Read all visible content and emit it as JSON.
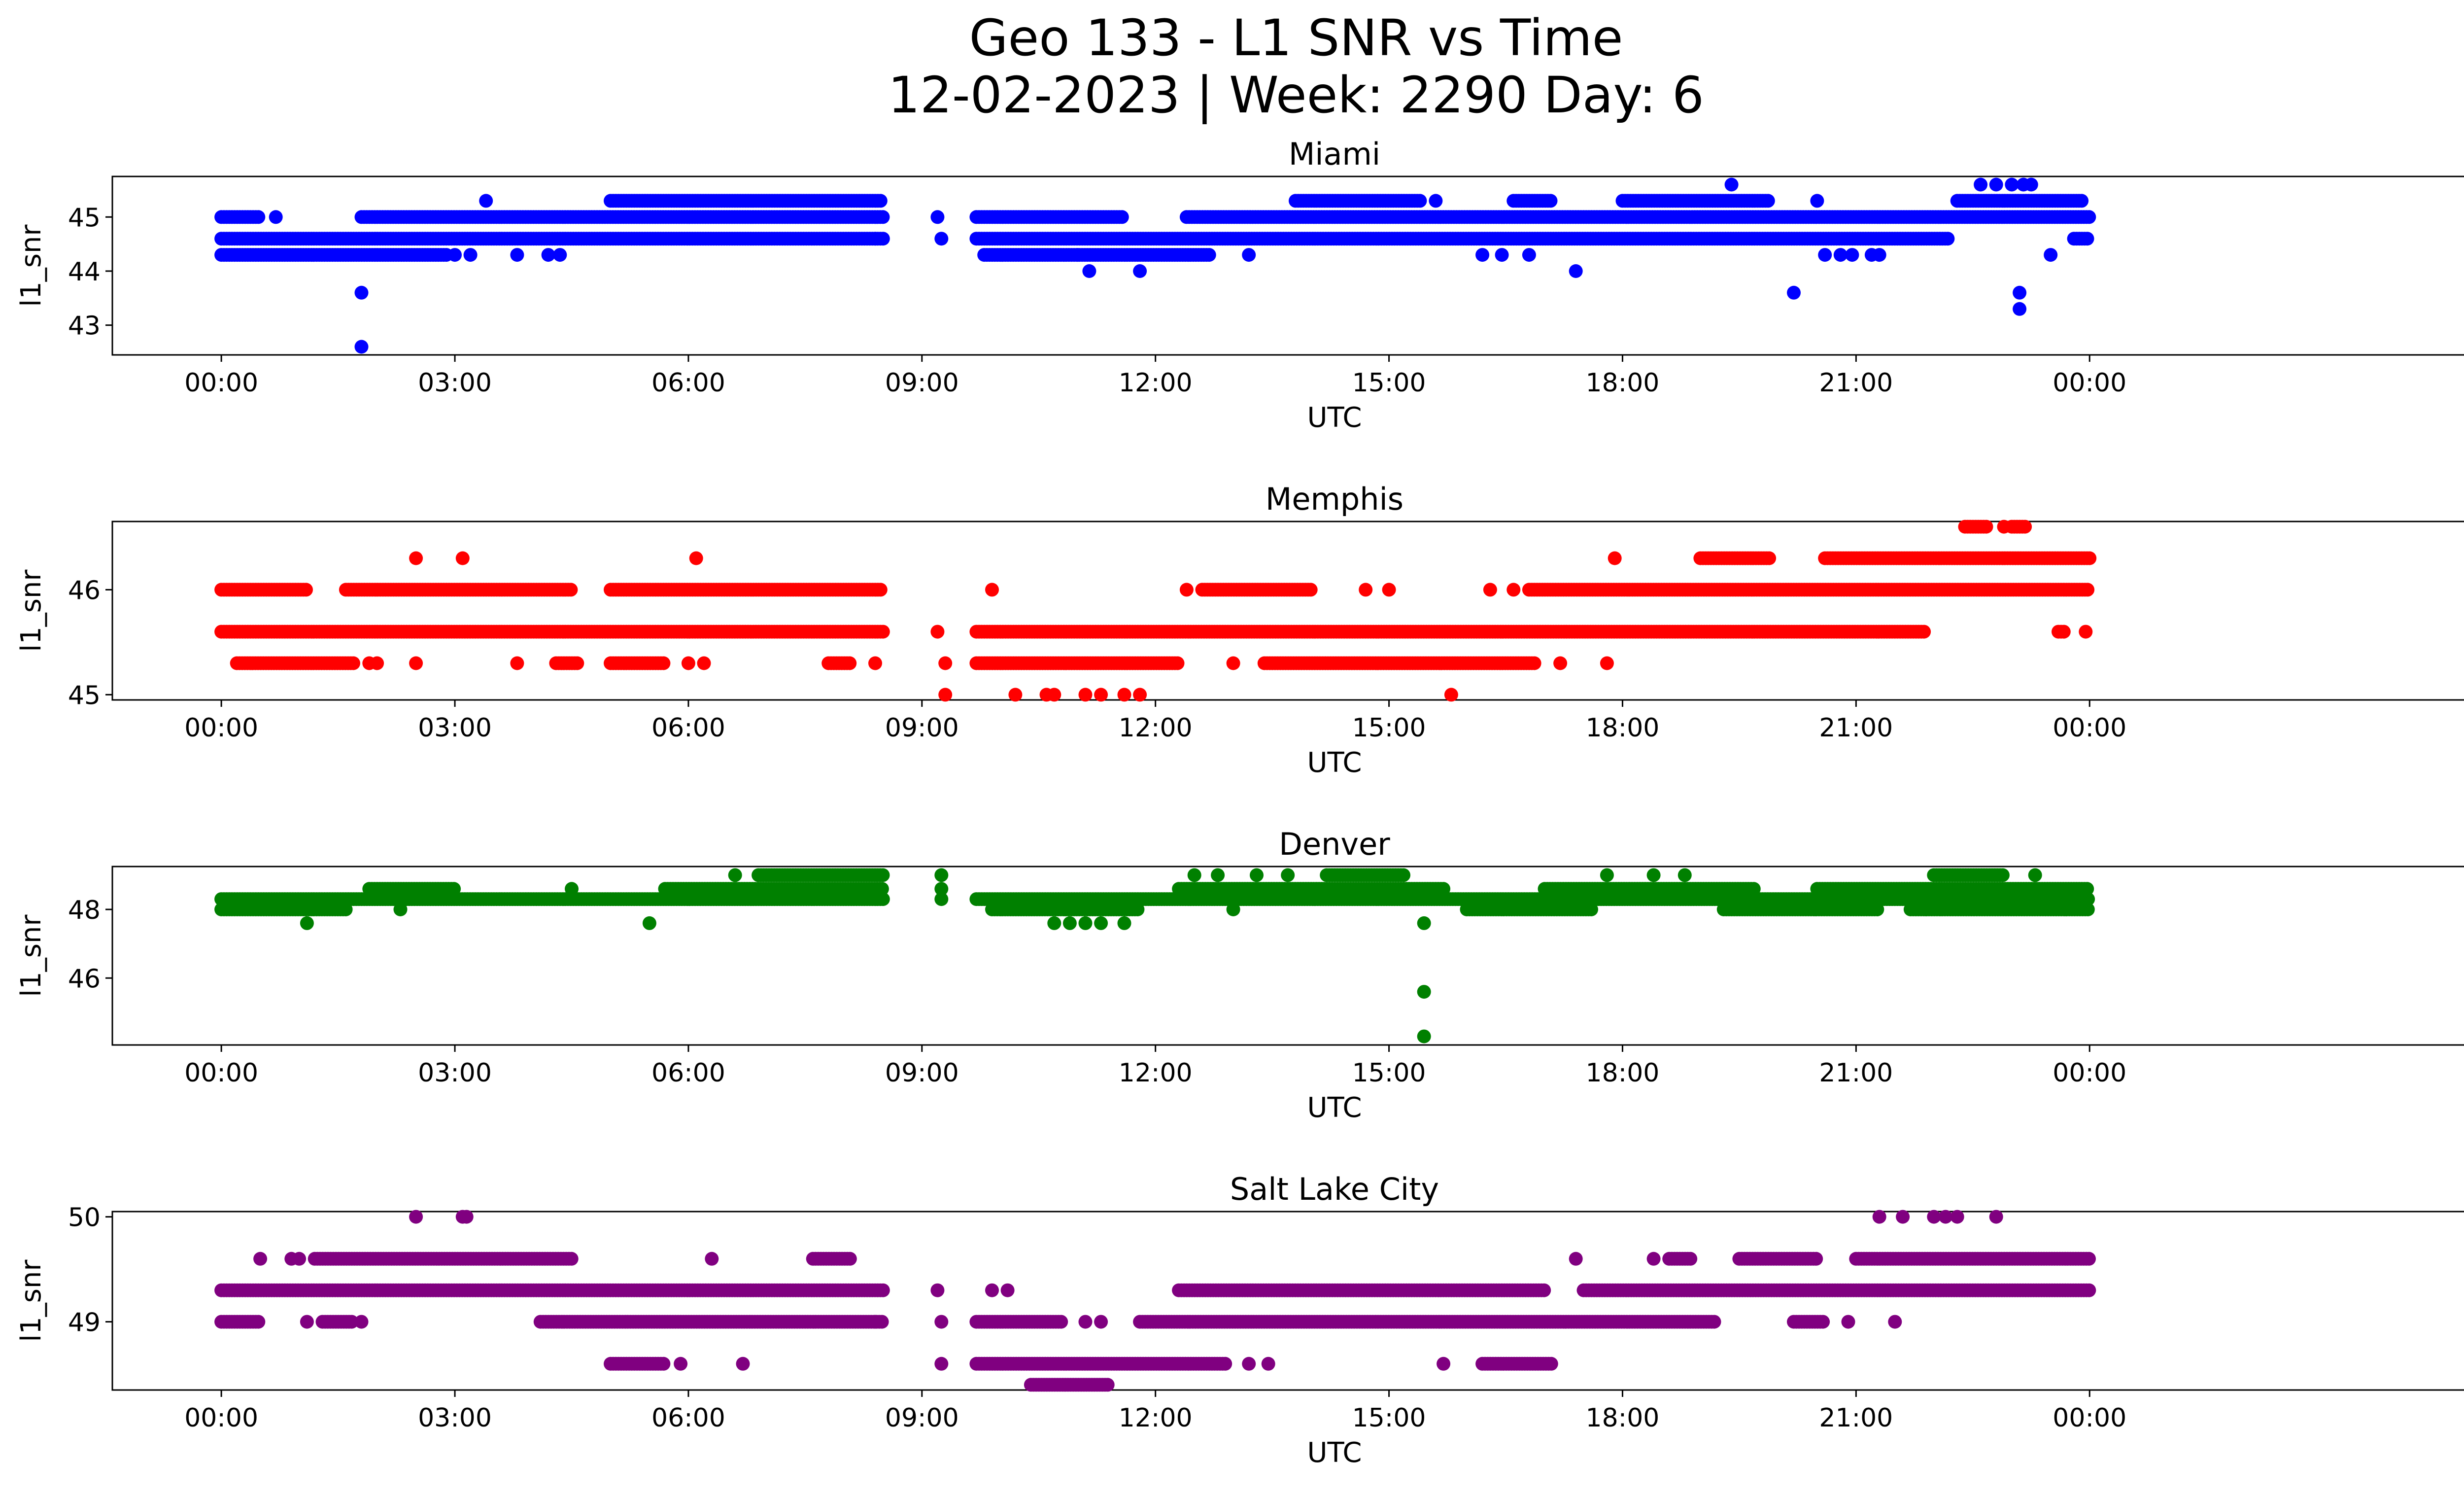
{
  "figure": {
    "title_line1": "Geo 133 - L1 SNR vs Time",
    "title_line2": "12-02-2023 | Week: 2290 Day: 6"
  },
  "chart_data": [
    {
      "type": "scatter",
      "title": "Miami",
      "xlabel": "UTC",
      "ylabel": "l1_snr",
      "color": "#0000ff",
      "xlim": [
        -1.4,
        30.0
      ],
      "ylim": [
        42.45,
        45.75
      ],
      "xticks": [
        0,
        3,
        6,
        9,
        12,
        15,
        18,
        21,
        24
      ],
      "xtick_labels": [
        "00:00",
        "03:00",
        "06:00",
        "09:00",
        "12:00",
        "15:00",
        "18:00",
        "21:00",
        "00:00"
      ],
      "yticks": [
        43,
        44,
        45
      ],
      "levels": [
        {
          "y": 44.3,
          "ranges": [
            [
              0.0,
              2.9
            ],
            [
              9.8,
              12.7
            ]
          ]
        },
        {
          "y": 44.6,
          "ranges": [
            [
              0.0,
              8.5
            ],
            [
              9.7,
              22.2
            ],
            [
              23.8,
              24.0
            ]
          ]
        },
        {
          "y": 45.0,
          "ranges": [
            [
              0.0,
              0.5
            ],
            [
              1.8,
              8.5
            ],
            [
              9.7,
              11.6
            ],
            [
              12.4,
              24.0
            ]
          ]
        },
        {
          "y": 45.3,
          "ranges": [
            [
              5.0,
              8.5
            ],
            [
              13.8,
              15.4
            ],
            [
              16.6,
              17.1
            ],
            [
              18.0,
              19.9
            ],
            [
              22.3,
              23.9
            ]
          ]
        }
      ],
      "extra_points": [
        [
          0.7,
          45.0
        ],
        [
          1.8,
          43.6
        ],
        [
          1.8,
          42.6
        ],
        [
          3.0,
          44.3
        ],
        [
          3.2,
          44.3
        ],
        [
          3.4,
          45.3
        ],
        [
          3.8,
          44.3
        ],
        [
          4.2,
          44.3
        ],
        [
          4.35,
          44.3
        ],
        [
          8.4,
          44.6
        ],
        [
          9.2,
          45.0
        ],
        [
          9.25,
          44.6
        ],
        [
          11.0,
          44.3
        ],
        [
          11.15,
          44.0
        ],
        [
          11.8,
          44.0
        ],
        [
          13.2,
          44.3
        ],
        [
          15.6,
          45.3
        ],
        [
          16.2,
          44.3
        ],
        [
          16.45,
          44.3
        ],
        [
          16.8,
          44.3
        ],
        [
          17.4,
          44.0
        ],
        [
          19.4,
          45.6
        ],
        [
          20.2,
          43.6
        ],
        [
          20.5,
          45.3
        ],
        [
          20.6,
          44.3
        ],
        [
          20.8,
          44.3
        ],
        [
          20.95,
          44.3
        ],
        [
          21.2,
          44.3
        ],
        [
          21.3,
          44.3
        ],
        [
          22.6,
          45.6
        ],
        [
          22.8,
          45.6
        ],
        [
          23.0,
          45.6
        ],
        [
          23.15,
          45.6
        ],
        [
          23.25,
          45.6
        ],
        [
          23.1,
          43.6
        ],
        [
          23.1,
          43.3
        ],
        [
          23.5,
          44.3
        ]
      ]
    },
    {
      "type": "scatter",
      "title": "Memphis",
      "xlabel": "UTC",
      "ylabel": "l1_snr",
      "color": "#ff0000",
      "xlim": [
        -1.4,
        30.0
      ],
      "ylim": [
        44.95,
        46.65
      ],
      "xticks": [
        0,
        3,
        6,
        9,
        12,
        15,
        18,
        21,
        24
      ],
      "xtick_labels": [
        "00:00",
        "03:00",
        "06:00",
        "09:00",
        "12:00",
        "15:00",
        "18:00",
        "21:00",
        "00:00"
      ],
      "yticks": [
        45,
        46
      ],
      "levels": [
        {
          "y": 45.3,
          "ranges": [
            [
              0.2,
              1.7
            ],
            [
              4.3,
              4.6
            ],
            [
              5.0,
              5.7
            ],
            [
              7.8,
              8.1
            ],
            [
              9.7,
              12.3
            ],
            [
              13.4,
              16.9
            ]
          ]
        },
        {
          "y": 45.6,
          "ranges": [
            [
              0.0,
              8.5
            ],
            [
              9.7,
              21.9
            ],
            [
              23.6,
              23.7
            ]
          ]
        },
        {
          "y": 46.0,
          "ranges": [
            [
              0.0,
              1.1
            ],
            [
              1.6,
              4.5
            ],
            [
              5.0,
              8.5
            ],
            [
              12.6,
              14.0
            ],
            [
              16.8,
              24.0
            ]
          ]
        },
        {
          "y": 46.3,
          "ranges": [
            [
              19.0,
              19.9
            ],
            [
              20.6,
              24.0
            ]
          ]
        },
        {
          "y": 46.6,
          "ranges": [
            [
              22.4,
              22.7
            ],
            [
              23.0,
              23.2
            ]
          ]
        }
      ],
      "extra_points": [
        [
          1.9,
          45.3
        ],
        [
          2.0,
          45.3
        ],
        [
          2.5,
          46.3
        ],
        [
          2.5,
          45.3
        ],
        [
          3.1,
          46.3
        ],
        [
          3.8,
          45.3
        ],
        [
          6.0,
          45.3
        ],
        [
          6.1,
          46.3
        ],
        [
          6.2,
          45.3
        ],
        [
          8.4,
          45.3
        ],
        [
          9.2,
          45.6
        ],
        [
          9.3,
          45.3
        ],
        [
          9.3,
          45.0
        ],
        [
          9.9,
          46.0
        ],
        [
          10.2,
          45.0
        ],
        [
          10.6,
          45.0
        ],
        [
          10.7,
          45.0
        ],
        [
          11.1,
          45.0
        ],
        [
          11.3,
          45.0
        ],
        [
          11.6,
          45.0
        ],
        [
          11.8,
          45.0
        ],
        [
          12.4,
          46.0
        ],
        [
          13.0,
          45.3
        ],
        [
          14.7,
          46.0
        ],
        [
          15.0,
          46.0
        ],
        [
          15.8,
          45.0
        ],
        [
          16.3,
          46.0
        ],
        [
          16.6,
          46.0
        ],
        [
          17.2,
          45.3
        ],
        [
          17.8,
          45.3
        ],
        [
          17.9,
          46.3
        ],
        [
          22.9,
          46.6
        ],
        [
          23.95,
          45.6
        ]
      ]
    },
    {
      "type": "scatter",
      "title": "Denver",
      "xlabel": "UTC",
      "ylabel": "l1_snr",
      "color": "#008000",
      "xlim": [
        -1.4,
        30.0
      ],
      "ylim": [
        44.05,
        49.25
      ],
      "xticks": [
        0,
        3,
        6,
        9,
        12,
        15,
        18,
        21,
        24
      ],
      "xtick_labels": [
        "00:00",
        "03:00",
        "06:00",
        "09:00",
        "12:00",
        "15:00",
        "18:00",
        "21:00",
        "00:00"
      ],
      "yticks": [
        46,
        48
      ],
      "levels": [
        {
          "y": 48.0,
          "ranges": [
            [
              0.0,
              1.6
            ],
            [
              9.9,
              11.8
            ],
            [
              16.0,
              17.6
            ],
            [
              19.3,
              21.3
            ],
            [
              21.7,
              24.0
            ]
          ]
        },
        {
          "y": 48.3,
          "ranges": [
            [
              0.0,
              8.5
            ],
            [
              9.7,
              24.0
            ]
          ]
        },
        {
          "y": 48.6,
          "ranges": [
            [
              1.9,
              3.0
            ],
            [
              5.7,
              8.5
            ],
            [
              12.3,
              15.7
            ],
            [
              17.0,
              19.7
            ],
            [
              20.5,
              24.0
            ]
          ]
        },
        {
          "y": 49.0,
          "ranges": [
            [
              6.9,
              8.5
            ],
            [
              14.2,
              15.2
            ],
            [
              22.0,
              22.9
            ]
          ]
        }
      ],
      "extra_points": [
        [
          1.1,
          47.6
        ],
        [
          2.3,
          48.0
        ],
        [
          4.5,
          48.6
        ],
        [
          5.5,
          47.6
        ],
        [
          6.6,
          49.0
        ],
        [
          9.25,
          49.0
        ],
        [
          9.25,
          48.6
        ],
        [
          9.25,
          48.3
        ],
        [
          10.7,
          47.6
        ],
        [
          10.9,
          47.6
        ],
        [
          11.1,
          47.6
        ],
        [
          11.3,
          47.6
        ],
        [
          11.6,
          47.6
        ],
        [
          12.5,
          49.0
        ],
        [
          12.8,
          49.0
        ],
        [
          13.0,
          48.0
        ],
        [
          13.3,
          49.0
        ],
        [
          13.7,
          49.0
        ],
        [
          15.45,
          47.6
        ],
        [
          15.45,
          45.6
        ],
        [
          15.45,
          44.3
        ],
        [
          17.8,
          49.0
        ],
        [
          18.4,
          49.0
        ],
        [
          18.8,
          49.0
        ],
        [
          21.9,
          48.0
        ],
        [
          23.3,
          49.0
        ]
      ]
    },
    {
      "type": "scatter",
      "title": "Salt Lake City",
      "xlabel": "UTC",
      "ylabel": "l1_snr",
      "color": "#800080",
      "xlim": [
        -1.4,
        30.0
      ],
      "ylim": [
        48.35,
        50.05
      ],
      "xticks": [
        0,
        3,
        6,
        9,
        12,
        15,
        18,
        21,
        24
      ],
      "xtick_labels": [
        "00:00",
        "03:00",
        "06:00",
        "09:00",
        "12:00",
        "15:00",
        "18:00",
        "21:00",
        "00:00"
      ],
      "yticks": [
        49,
        50
      ],
      "levels": [
        {
          "y": 48.4,
          "ranges": [
            [
              10.4,
              11.4
            ]
          ]
        },
        {
          "y": 48.6,
          "ranges": [
            [
              9.7,
              12.9
            ],
            [
              5.0,
              5.7
            ],
            [
              16.2,
              17.1
            ]
          ]
        },
        {
          "y": 49.0,
          "ranges": [
            [
              0.0,
              0.5
            ],
            [
              1.3,
              1.7
            ],
            [
              4.1,
              8.5
            ],
            [
              9.7,
              10.8
            ],
            [
              11.8,
              19.2
            ],
            [
              20.2,
              20.6
            ]
          ]
        },
        {
          "y": 49.3,
          "ranges": [
            [
              0.0,
              8.5
            ],
            [
              12.3,
              17.0
            ],
            [
              17.5,
              24.0
            ]
          ]
        },
        {
          "y": 49.6,
          "ranges": [
            [
              1.2,
              4.5
            ],
            [
              7.6,
              8.1
            ],
            [
              18.6,
              18.9
            ],
            [
              19.5,
              20.5
            ],
            [
              21.0,
              24.0
            ]
          ]
        }
      ],
      "extra_points": [
        [
          0.5,
          49.6
        ],
        [
          0.9,
          49.6
        ],
        [
          1.0,
          49.6
        ],
        [
          1.1,
          49.0
        ],
        [
          1.8,
          49.0
        ],
        [
          2.5,
          50.0
        ],
        [
          3.1,
          50.0
        ],
        [
          3.15,
          50.0
        ],
        [
          5.9,
          48.6
        ],
        [
          6.3,
          49.6
        ],
        [
          6.7,
          48.6
        ],
        [
          8.4,
          49.0
        ],
        [
          9.2,
          49.3
        ],
        [
          9.25,
          49.0
        ],
        [
          9.25,
          48.6
        ],
        [
          9.9,
          49.3
        ],
        [
          10.1,
          49.3
        ],
        [
          11.1,
          49.0
        ],
        [
          11.3,
          49.0
        ],
        [
          13.2,
          48.6
        ],
        [
          13.45,
          48.6
        ],
        [
          15.7,
          48.6
        ],
        [
          17.4,
          49.6
        ],
        [
          18.4,
          49.6
        ],
        [
          20.9,
          49.0
        ],
        [
          21.3,
          50.0
        ],
        [
          21.5,
          49.0
        ],
        [
          21.6,
          50.0
        ],
        [
          22.0,
          50.0
        ],
        [
          22.15,
          50.0
        ],
        [
          22.3,
          50.0
        ],
        [
          22.8,
          50.0
        ]
      ]
    }
  ]
}
